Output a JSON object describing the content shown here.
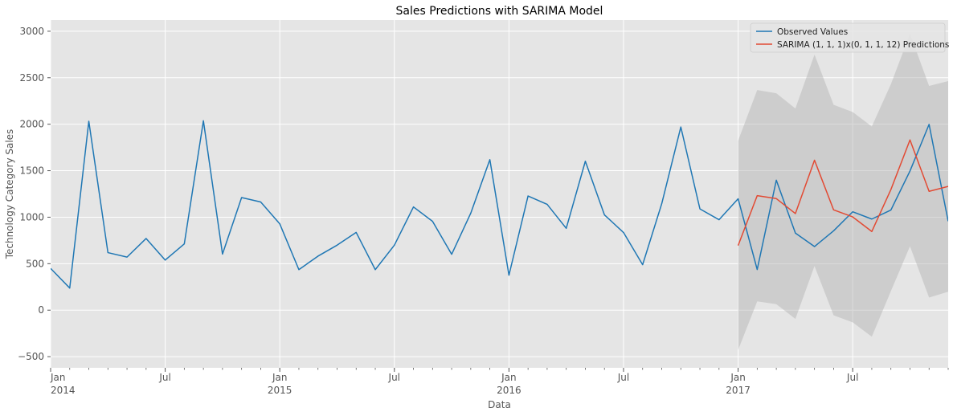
{
  "chart_data": {
    "type": "line",
    "title": "Sales Predictions with SARIMA Model",
    "xlabel": "Data",
    "ylabel": "Technology Category Sales",
    "ylim": [
      -620,
      3120
    ],
    "xlim": [
      "2014-01",
      "2017-12"
    ],
    "y_ticks": [
      -500,
      0,
      500,
      1000,
      1500,
      2000,
      2500,
      3000
    ],
    "x_ticks": [
      {
        "date": "2014-01",
        "label": "Jan",
        "year": "2014"
      },
      {
        "date": "2014-07",
        "label": "Jul",
        "year": ""
      },
      {
        "date": "2015-01",
        "label": "Jan",
        "year": "2015"
      },
      {
        "date": "2015-07",
        "label": "Jul",
        "year": ""
      },
      {
        "date": "2016-01",
        "label": "Jan",
        "year": "2016"
      },
      {
        "date": "2016-07",
        "label": "Jul",
        "year": ""
      },
      {
        "date": "2017-01",
        "label": "Jan",
        "year": "2017"
      },
      {
        "date": "2017-07",
        "label": "Jul",
        "year": ""
      }
    ],
    "grid": true,
    "legend_position": "top-right",
    "series": [
      {
        "name": "Observed Values",
        "color": "#1f77b4",
        "x": [
          "2014-01",
          "2014-02",
          "2014-03",
          "2014-04",
          "2014-05",
          "2014-06",
          "2014-07",
          "2014-08",
          "2014-09",
          "2014-10",
          "2014-11",
          "2014-12",
          "2015-01",
          "2015-02",
          "2015-03",
          "2015-04",
          "2015-05",
          "2015-06",
          "2015-07",
          "2015-08",
          "2015-09",
          "2015-10",
          "2015-11",
          "2015-12",
          "2016-01",
          "2016-02",
          "2016-03",
          "2016-04",
          "2016-05",
          "2016-06",
          "2016-07",
          "2016-08",
          "2016-09",
          "2016-10",
          "2016-11",
          "2016-12",
          "2017-01",
          "2017-02",
          "2017-03",
          "2017-04",
          "2017-05",
          "2017-06",
          "2017-07",
          "2017-08",
          "2017-09",
          "2017-10",
          "2017-11",
          "2017-12"
        ],
        "values": [
          449,
          238,
          2032,
          619,
          571,
          771,
          539,
          713,
          2037,
          603,
          1211,
          1164,
          928,
          436,
          581,
          699,
          836,
          436,
          699,
          1110,
          955,
          601,
          1043,
          1619,
          376,
          1228,
          1138,
          880,
          1602,
          1025,
          835,
          489,
          1145,
          1970,
          1089,
          973,
          1198,
          437,
          1398,
          829,
          684,
          853,
          1058,
          980,
          1077,
          1497,
          1998,
          956
        ]
      },
      {
        "name": "SARIMA (1, 1, 1)x(0, 1, 1, 12) Predictions",
        "color": "#e24a33",
        "x": [
          "2017-01",
          "2017-02",
          "2017-03",
          "2017-04",
          "2017-05",
          "2017-06",
          "2017-07",
          "2017-08",
          "2017-09",
          "2017-10",
          "2017-11",
          "2017-12"
        ],
        "values": [
          695,
          1232,
          1200,
          1039,
          1613,
          1079,
          1003,
          846,
          1297,
          1831,
          1278,
          1331
        ]
      }
    ],
    "confidence_interval": {
      "x": [
        "2017-01",
        "2017-02",
        "2017-03",
        "2017-04",
        "2017-05",
        "2017-06",
        "2017-07",
        "2017-08",
        "2017-09",
        "2017-10",
        "2017-11",
        "2017-12"
      ],
      "lower": [
        -428,
        95,
        65,
        -94,
        475,
        -55,
        -131,
        -285,
        205,
        688,
        136,
        198
      ],
      "upper": [
        1822,
        2368,
        2333,
        2169,
        2749,
        2209,
        2131,
        1976,
        2430,
        2973,
        2412,
        2464
      ]
    }
  }
}
